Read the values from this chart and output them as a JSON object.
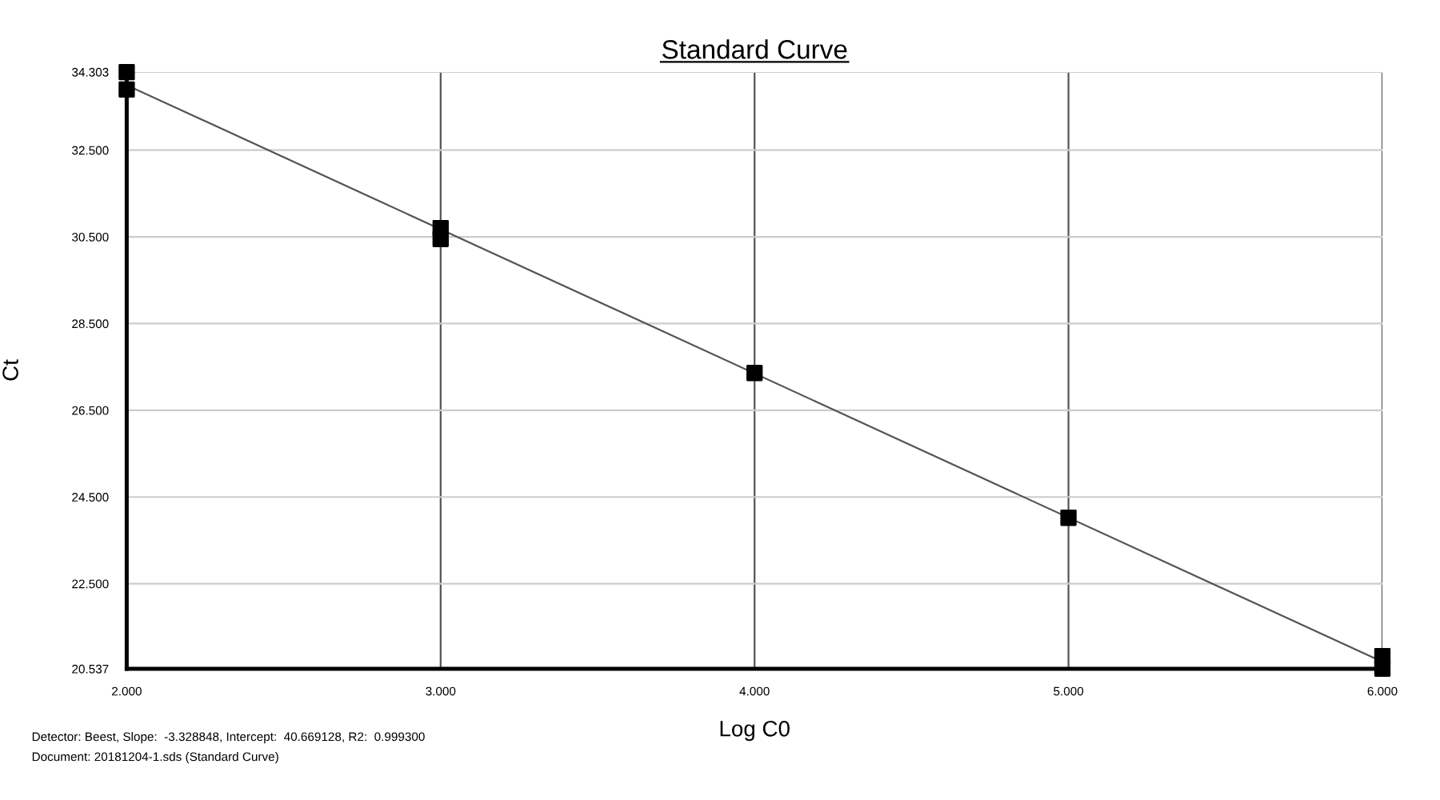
{
  "chart_data": {
    "type": "scatter",
    "title": "Standard Curve",
    "xlabel": "Log C0",
    "ylabel": "Ct",
    "series": [
      {
        "color": "#000000",
        "marker": "square",
        "x": [
          2,
          2,
          3,
          3,
          4,
          5,
          6,
          6
        ],
        "values": [
          34.3,
          33.9,
          30.7,
          30.45,
          27.36,
          24.02,
          20.83,
          20.54
        ]
      },
      {
        "type": "line",
        "color": "#555555",
        "marker": "none",
        "line_style": "solid",
        "x": [
          2,
          6
        ],
        "values": [
          34.0,
          20.7
        ]
      }
    ],
    "xlim": [
      2,
      6
    ],
    "ylim": [
      20.537,
      34.303
    ],
    "xticks": [
      {
        "value": 2,
        "label": "2.000"
      },
      {
        "value": 3,
        "label": "3.000"
      },
      {
        "value": 4,
        "label": "4.000"
      },
      {
        "value": 5,
        "label": "5.000"
      },
      {
        "value": 6,
        "label": "6.000"
      }
    ],
    "yticks": [
      {
        "value": 20.537,
        "label": "20.537"
      },
      {
        "value": 22.5,
        "label": "22.500"
      },
      {
        "value": 24.5,
        "label": "24.500"
      },
      {
        "value": 26.5,
        "label": "26.500"
      },
      {
        "value": 28.5,
        "label": "28.500"
      },
      {
        "value": 30.5,
        "label": "30.500"
      },
      {
        "value": 32.5,
        "label": "32.500"
      },
      {
        "value": 34.303,
        "label": "34.303"
      }
    ],
    "grid": true,
    "annotations": [
      "Detector: Beest, Slope:  -3.328848, Intercept:  40.669128, R2:  0.999300",
      "Document: 20181204-1.sds (Standard Curve)"
    ]
  }
}
